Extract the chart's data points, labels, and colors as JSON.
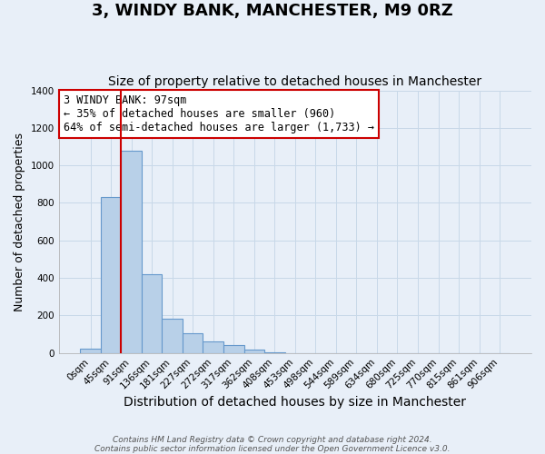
{
  "title": "3, WINDY BANK, MANCHESTER, M9 0RZ",
  "subtitle": "Size of property relative to detached houses in Manchester",
  "xlabel": "Distribution of detached houses by size in Manchester",
  "ylabel": "Number of detached properties",
  "footer_lines": [
    "Contains HM Land Registry data © Crown copyright and database right 2024.",
    "Contains public sector information licensed under the Open Government Licence v3.0."
  ],
  "bar_labels": [
    "0sqm",
    "45sqm",
    "91sqm",
    "136sqm",
    "181sqm",
    "227sqm",
    "272sqm",
    "317sqm",
    "362sqm",
    "408sqm",
    "453sqm",
    "498sqm",
    "544sqm",
    "589sqm",
    "634sqm",
    "680sqm",
    "725sqm",
    "770sqm",
    "815sqm",
    "861sqm",
    "906sqm"
  ],
  "bar_values": [
    25,
    830,
    1080,
    420,
    183,
    103,
    60,
    40,
    20,
    5,
    0,
    0,
    0,
    0,
    0,
    0,
    0,
    0,
    0,
    0,
    0
  ],
  "bar_color": "#b8d0e8",
  "bar_edge_color": "#6699cc",
  "grid_color": "#c8d8e8",
  "background_color": "#e8eff8",
  "vline_color": "#cc0000",
  "vline_index": 1.5,
  "annotation_text": "3 WINDY BANK: 97sqm\n← 35% of detached houses are smaller (960)\n64% of semi-detached houses are larger (1,733) →",
  "annotation_box_color": "#ffffff",
  "annotation_box_edge_color": "#cc0000",
  "ylim": [
    0,
    1400
  ],
  "yticks": [
    0,
    200,
    400,
    600,
    800,
    1000,
    1200,
    1400
  ],
  "title_fontsize": 13,
  "subtitle_fontsize": 10,
  "xlabel_fontsize": 10,
  "ylabel_fontsize": 9,
  "annotation_fontsize": 8.5,
  "tick_label_fontsize": 7.5
}
